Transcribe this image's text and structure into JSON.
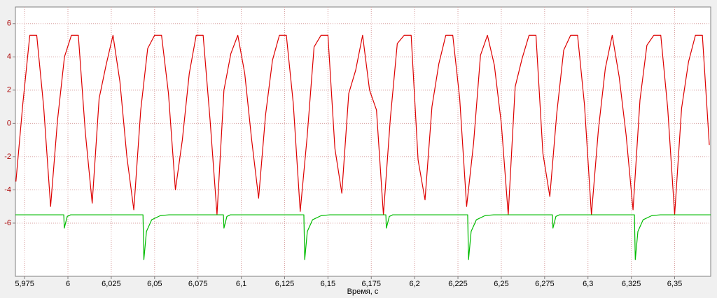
{
  "chart_data": {
    "type": "line",
    "xlabel": "Время, с",
    "xlim": [
      5.9697,
      6.3708
    ],
    "ylim": [
      -9.2,
      7.0
    ],
    "xticks": [
      {
        "value": 5.975,
        "label": "5,975"
      },
      6,
      {
        "value": 6.025,
        "label": "6,025"
      },
      {
        "value": 6.05,
        "label": "6,05"
      },
      {
        "value": 6.075,
        "label": "6,075"
      },
      {
        "value": 6.1,
        "label": "6,1"
      },
      {
        "value": 6.125,
        "label": "6,125"
      },
      {
        "value": 6.15,
        "label": "6,15"
      },
      {
        "value": 6.175,
        "label": "6,175"
      },
      {
        "value": 6.2,
        "label": "6,2"
      },
      {
        "value": 6.225,
        "label": "6,225"
      },
      {
        "value": 6.25,
        "label": "6,25"
      },
      {
        "value": 6.275,
        "label": "6,275"
      },
      {
        "value": 6.3,
        "label": "6,3"
      },
      {
        "value": 6.325,
        "label": "6,325"
      },
      {
        "value": 6.35,
        "label": "6,35"
      }
    ],
    "yticks": [
      -6,
      -4,
      -2,
      0,
      2,
      4,
      6
    ],
    "grid": true,
    "series": [
      {
        "color": "#dd0000",
        "x": [
          5.97,
          5.974,
          5.978,
          5.982,
          5.986,
          5.99,
          5.994,
          5.998,
          6.002,
          6.006,
          6.01,
          6.014,
          6.018,
          6.022,
          6.026,
          6.03,
          6.034,
          6.038,
          6.042,
          6.046,
          6.05,
          6.054,
          6.058,
          6.062,
          6.066,
          6.07,
          6.074,
          6.078,
          6.082,
          6.086,
          6.09,
          6.094,
          6.098,
          6.102,
          6.106,
          6.11,
          6.114,
          6.118,
          6.122,
          6.126,
          6.13,
          6.134,
          6.138,
          6.142,
          6.146,
          6.15,
          6.154,
          6.158,
          6.162,
          6.166,
          6.17,
          6.174,
          6.178,
          6.182,
          6.186,
          6.19,
          6.194,
          6.198,
          6.202,
          6.206,
          6.21,
          6.214,
          6.218,
          6.222,
          6.226,
          6.23,
          6.234,
          6.238,
          6.242,
          6.246,
          6.25,
          6.254,
          6.258,
          6.262,
          6.266,
          6.27,
          6.274,
          6.278,
          6.282,
          6.286,
          6.29,
          6.294,
          6.298,
          6.302,
          6.306,
          6.31,
          6.314,
          6.318,
          6.322,
          6.326,
          6.33,
          6.334,
          6.338,
          6.342,
          6.346,
          6.35,
          6.354,
          6.358,
          6.362,
          6.366,
          6.37
        ],
        "values": [
          -3.5,
          1.2,
          5.3,
          5.3,
          1.0,
          -5.0,
          0.2,
          4.0,
          5.3,
          5.3,
          -0.5,
          -4.8,
          1.5,
          3.5,
          5.3,
          2.5,
          -2.0,
          -5.2,
          0.8,
          4.5,
          5.3,
          5.3,
          1.8,
          -4.0,
          -1.0,
          3.0,
          5.3,
          5.3,
          0.2,
          -5.5,
          2.0,
          4.2,
          5.3,
          3.0,
          -1.0,
          -4.5,
          0.5,
          3.8,
          5.3,
          5.3,
          1.2,
          -5.3,
          -0.8,
          4.6,
          5.3,
          5.3,
          -1.5,
          -4.2,
          1.8,
          3.2,
          5.3,
          2.0,
          0.8,
          -5.5,
          0.3,
          4.8,
          5.3,
          5.3,
          -2.2,
          -4.6,
          1.0,
          3.6,
          5.3,
          5.3,
          1.5,
          -5.0,
          -1.2,
          4.1,
          5.3,
          3.5,
          0.0,
          -5.5,
          2.2,
          3.9,
          5.3,
          5.3,
          -1.8,
          -4.4,
          0.6,
          4.4,
          5.3,
          5.3,
          1.1,
          -5.5,
          -0.4,
          3.3,
          5.3,
          2.8,
          -0.7,
          -5.2,
          1.4,
          4.7,
          5.3,
          5.3,
          0.9,
          -5.5,
          0.9,
          3.7,
          5.3,
          5.3,
          -1.3
        ]
      },
      {
        "color": "#00bb00",
        "x": [
          5.9697,
          5.9976,
          5.9979,
          5.9996,
          6.0016,
          6.0433,
          6.0438,
          6.0453,
          6.0483,
          6.0533,
          6.0583,
          6.0897,
          6.09,
          6.0917,
          6.0937,
          6.1361,
          6.1366,
          6.1381,
          6.1411,
          6.1461,
          6.1511,
          6.1834,
          6.1837,
          6.1854,
          6.1874,
          6.2306,
          6.2311,
          6.2326,
          6.2356,
          6.2406,
          6.2456,
          6.2795,
          6.2798,
          6.2815,
          6.2835,
          6.3268,
          6.3273,
          6.3288,
          6.3318,
          6.3368,
          6.3418,
          6.3708
        ],
        "values": [
          -5.5,
          -5.5,
          -6.3,
          -5.6,
          -5.5,
          -5.5,
          -8.2,
          -6.5,
          -5.8,
          -5.55,
          -5.5,
          -5.5,
          -6.3,
          -5.6,
          -5.5,
          -5.5,
          -8.2,
          -6.5,
          -5.8,
          -5.55,
          -5.5,
          -5.5,
          -6.3,
          -5.6,
          -5.5,
          -5.5,
          -8.2,
          -6.5,
          -5.8,
          -5.55,
          -5.5,
          -5.5,
          -6.3,
          -5.6,
          -5.5,
          -5.5,
          -8.2,
          -6.5,
          -5.8,
          -5.55,
          -5.5,
          -5.5
        ]
      }
    ]
  }
}
